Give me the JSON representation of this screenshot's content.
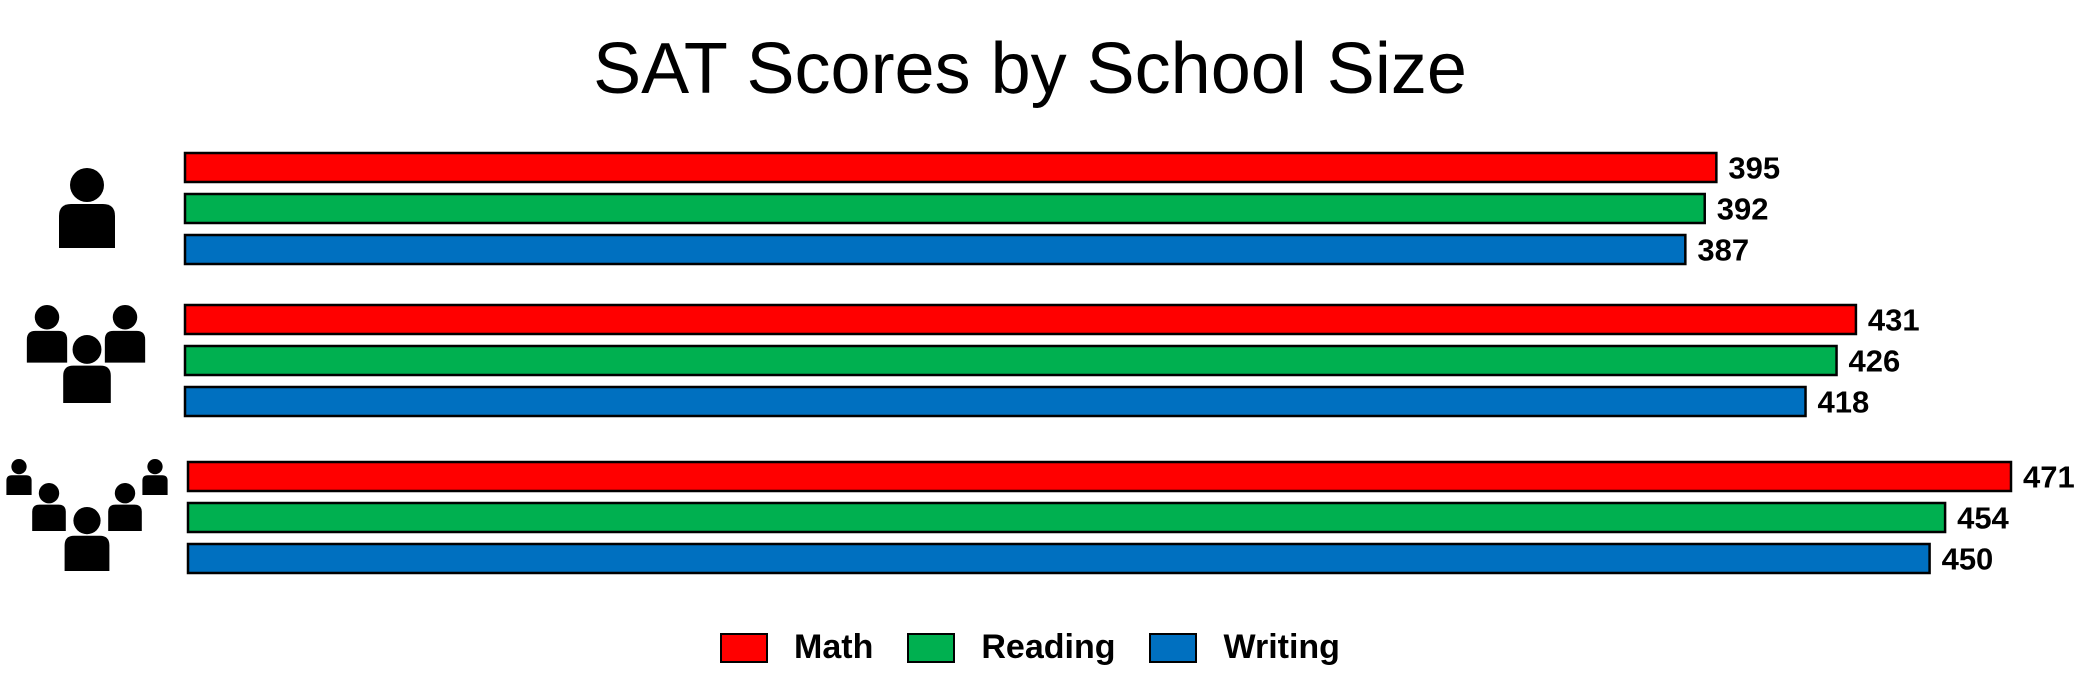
{
  "chart_data": {
    "type": "bar",
    "orientation": "horizontal",
    "title": "SAT Scores by School Size",
    "categories": [
      "small-school",
      "medium-school",
      "large-school"
    ],
    "category_icons": [
      "single-person-icon",
      "three-people-icon",
      "five-people-icon"
    ],
    "series": [
      {
        "name": "Math",
        "color": "#ff0000",
        "values": [
          395,
          431,
          471
        ]
      },
      {
        "name": "Reading",
        "color": "#00b050",
        "values": [
          392,
          426,
          454
        ]
      },
      {
        "name": "Writing",
        "color": "#0070c0",
        "values": [
          387,
          418,
          450
        ]
      }
    ],
    "xlim": [
      0,
      471
    ],
    "grid": false,
    "legend_position": "bottom"
  }
}
